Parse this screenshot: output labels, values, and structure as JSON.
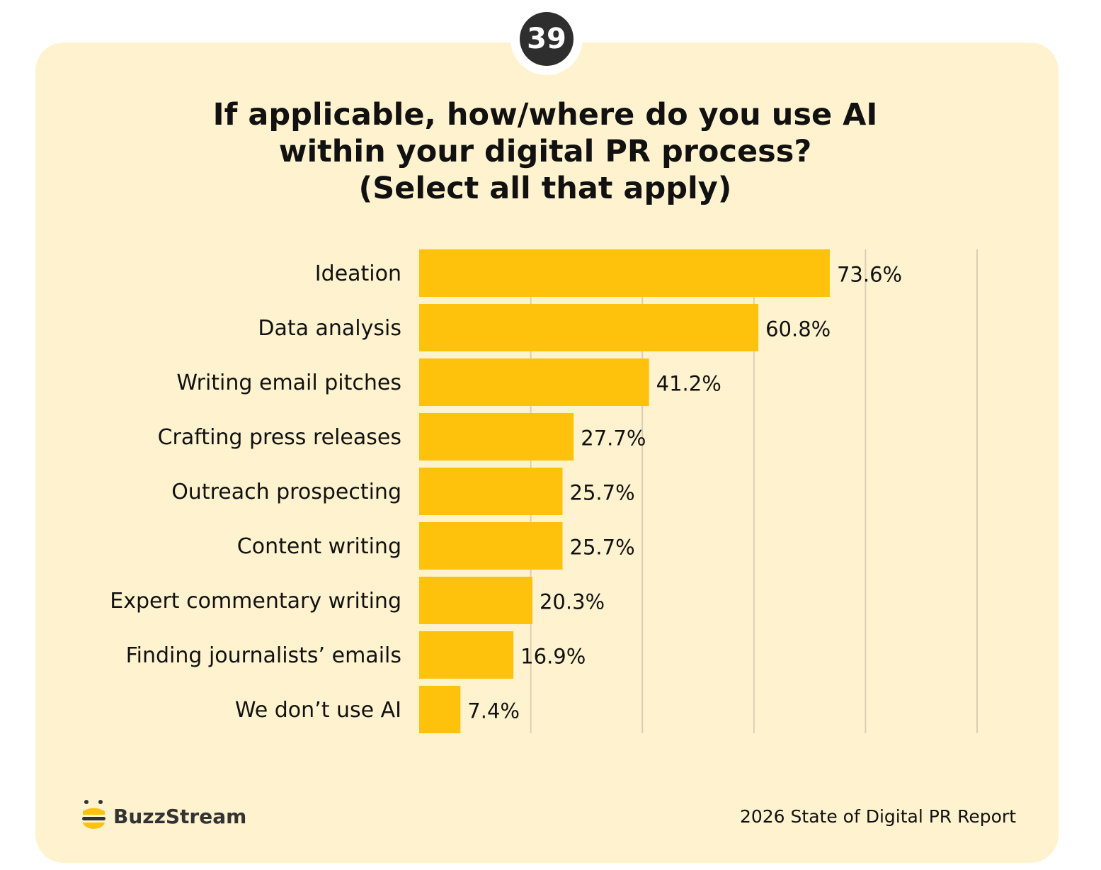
{
  "page_number": "39",
  "title_lines": [
    "If applicable, how/where do you use AI",
    "within your digital PR process?",
    "(Select all that apply)"
  ],
  "chart_data": {
    "type": "bar",
    "orientation": "horizontal",
    "categories": [
      "Ideation",
      "Data analysis",
      "Writing email pitches",
      "Crafting press releases",
      "Outreach prospecting",
      "Content writing",
      "Expert commentary writing",
      "Finding journalists’ emails",
      "We don’t use AI"
    ],
    "values": [
      73.6,
      60.8,
      41.2,
      27.7,
      25.7,
      25.7,
      20.3,
      16.9,
      7.4
    ],
    "value_labels": [
      "73.6%",
      "60.8%",
      "41.2%",
      "27.7%",
      "25.7%",
      "25.7%",
      "20.3%",
      "16.9%",
      "7.4%"
    ],
    "xlim": [
      0,
      100
    ],
    "grid": true,
    "grid_step": 20,
    "bar_color": "#fec20c",
    "grid_color": "#d9ceb4"
  },
  "footer": {
    "brand": "BuzzStream",
    "report": "2026 State of Digital PR Report"
  },
  "colors": {
    "card_background": "#fff3cf",
    "badge": "#2e2e2e",
    "logo_yellow": "#fec20c"
  }
}
